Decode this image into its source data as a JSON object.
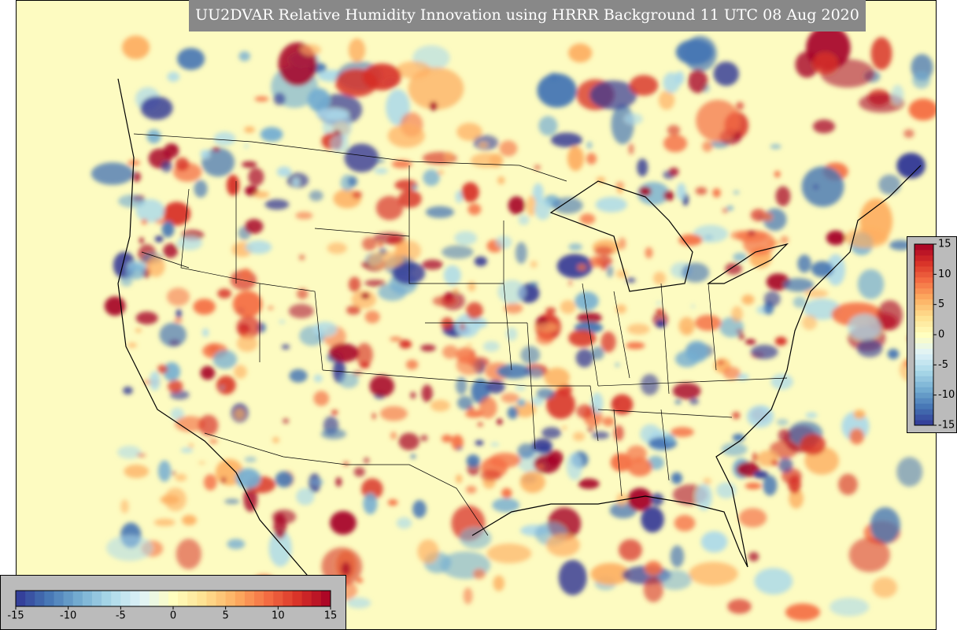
{
  "title": "UU2DVAR Relative Humidity Innovation using HRRR Background 11 UTC 08 Aug 2020",
  "colorbars": [
    {
      "orientation": "horizontal",
      "lim": [
        -15,
        15
      ],
      "ticks": [
        -15,
        -10,
        -5,
        0,
        5,
        10,
        15
      ],
      "colors": [
        "#313695",
        "#4575b4",
        "#74add1",
        "#abd9e9",
        "#e0f3f8",
        "#ffffbf",
        "#fee090",
        "#fdae61",
        "#f46d43",
        "#d73027",
        "#a50026"
      ]
    },
    {
      "orientation": "vertical",
      "lim": [
        -15,
        15
      ],
      "ticks": [
        -15,
        -10,
        -5,
        0,
        5,
        10,
        15
      ],
      "colors": [
        "#313695",
        "#4575b4",
        "#74add1",
        "#abd9e9",
        "#e0f3f8",
        "#ffffbf",
        "#fee090",
        "#fdae61",
        "#f46d43",
        "#d73027",
        "#a50026"
      ]
    }
  ]
}
